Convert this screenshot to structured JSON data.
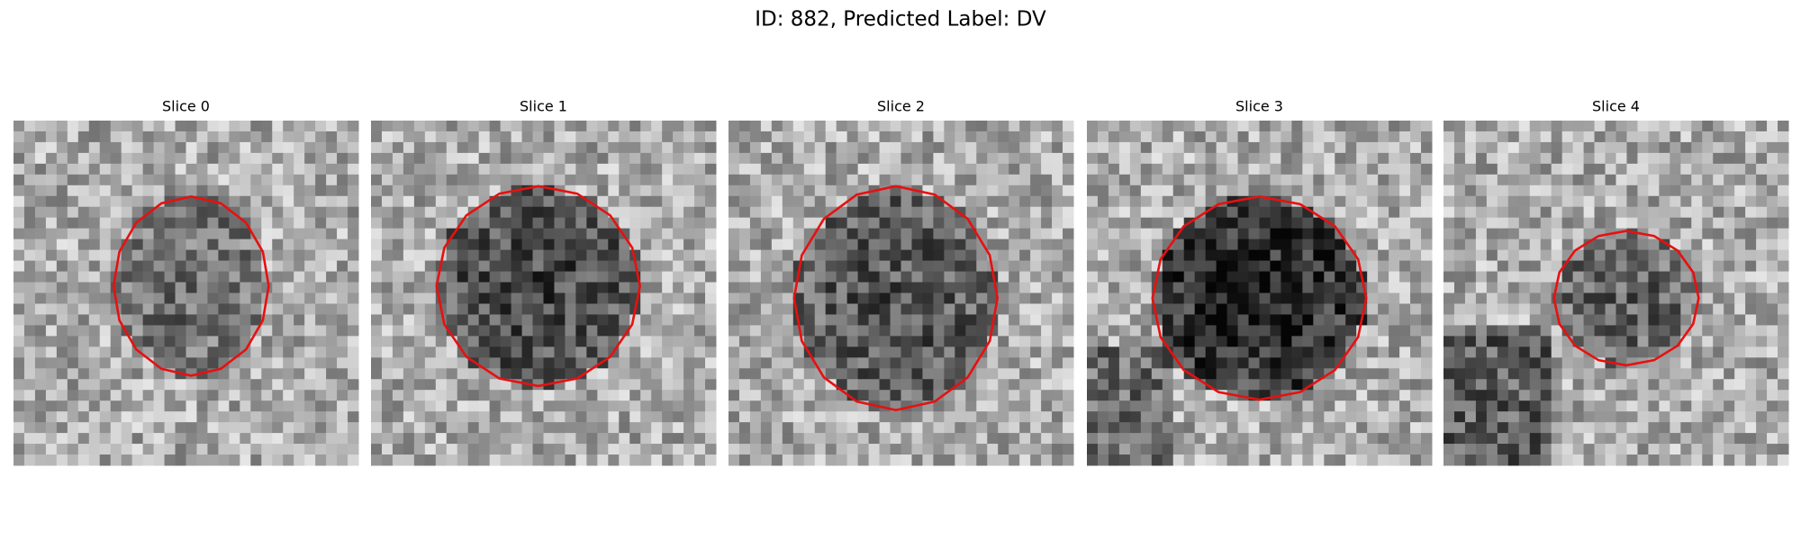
{
  "header": {
    "title": "ID: 882, Predicted Label: DV"
  },
  "panels": [
    {
      "title": "Slice 0"
    },
    {
      "title": "Slice 1"
    },
    {
      "title": "Slice 2"
    },
    {
      "title": "Slice 3"
    },
    {
      "title": "Slice 4"
    }
  ]
}
